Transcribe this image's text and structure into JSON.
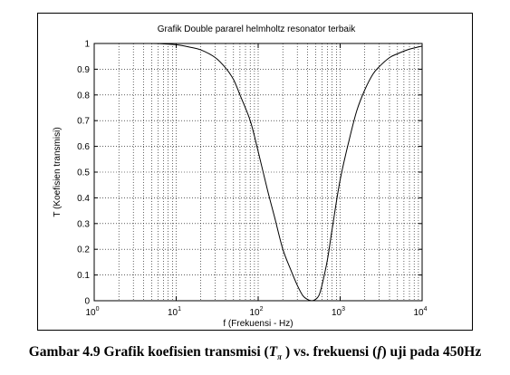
{
  "caption": {
    "prefix": "Gambar 4.9 Grafik koefisien transmisi (",
    "symbol": "T",
    "symbol_sub": "π",
    "middle": " ) vs. frekuensi (",
    "f_symbol": "f",
    "suffix": ") uji pada 450Hz"
  },
  "chart_data": {
    "type": "line",
    "title": "Grafik Double pararel helmholtz resonator terbaik",
    "xlabel": "f  (Frekuensi - Hz)",
    "ylabel": "T  (Koefisien transmisi)",
    "xscale": "log",
    "xlim": [
      1,
      10000
    ],
    "ylim": [
      0,
      1
    ],
    "grid": "dotted",
    "x_ticks": [
      {
        "value": 1,
        "base": "10",
        "exp": "0"
      },
      {
        "value": 10,
        "base": "10",
        "exp": "1"
      },
      {
        "value": 100,
        "base": "10",
        "exp": "2"
      },
      {
        "value": 1000,
        "base": "10",
        "exp": "3"
      },
      {
        "value": 10000,
        "base": "10",
        "exp": "4"
      }
    ],
    "y_ticks": [
      "0",
      "0.1",
      "0.2",
      "0.3",
      "0.4",
      "0.5",
      "0.6",
      "0.7",
      "0.8",
      "0.9",
      "1"
    ],
    "line_color": "#000000",
    "series": [
      {
        "x": [
          1,
          5,
          10,
          15,
          20,
          30,
          40,
          50,
          60,
          80,
          100,
          130,
          160,
          200,
          250,
          300,
          350,
          400,
          450,
          500,
          550,
          600,
          700,
          800,
          1000,
          1300,
          1600,
          2000,
          2500,
          3000,
          4000,
          5000,
          7000,
          10000
        ],
        "y": [
          1.0,
          1.0,
          0.995,
          0.985,
          0.975,
          0.945,
          0.905,
          0.86,
          0.8,
          0.7,
          0.58,
          0.43,
          0.32,
          0.2,
          0.12,
          0.06,
          0.02,
          0.005,
          0.0,
          0.005,
          0.02,
          0.06,
          0.16,
          0.28,
          0.47,
          0.63,
          0.74,
          0.82,
          0.88,
          0.91,
          0.945,
          0.96,
          0.978,
          0.99
        ]
      }
    ]
  }
}
